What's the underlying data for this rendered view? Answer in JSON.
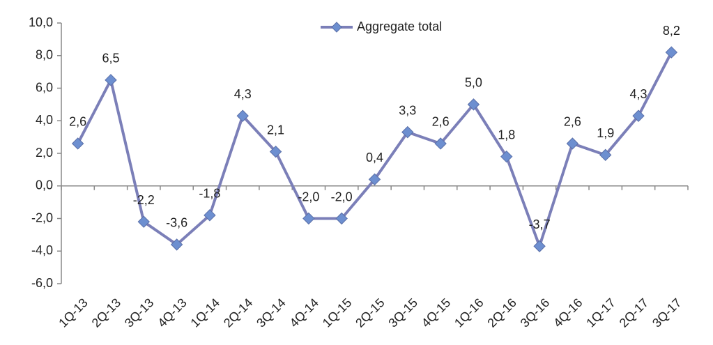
{
  "chart_data": {
    "type": "line",
    "categories": [
      "1Q-13",
      "2Q-13",
      "3Q-13",
      "4Q-13",
      "1Q-14",
      "2Q-14",
      "3Q-14",
      "4Q-14",
      "1Q-15",
      "2Q-15",
      "3Q-15",
      "4Q-15",
      "1Q-16",
      "2Q-16",
      "3Q-16",
      "4Q-16",
      "1Q-17",
      "2Q-17",
      "3Q-17"
    ],
    "series": [
      {
        "name": "Aggregate total",
        "color": "#7b7fb8",
        "marker_color": "#6d8fd0",
        "values": [
          2.6,
          6.5,
          -2.2,
          -3.6,
          -1.8,
          4.3,
          2.1,
          -2.0,
          -2.0,
          0.4,
          3.3,
          2.6,
          5.0,
          1.8,
          -3.7,
          2.6,
          1.9,
          4.3,
          8.2
        ],
        "value_labels": [
          "2,6",
          "6,5",
          "-2,2",
          "-3,6",
          "-1,8",
          "4,3",
          "2,1",
          "-2,0",
          "-2,0",
          "0,4",
          "3,3",
          "2,6",
          "5,0",
          "1,8",
          "-3,7",
          "2,6",
          "1,9",
          "4,3",
          "8,2"
        ]
      }
    ],
    "ylim": [
      -6,
      10
    ],
    "yticks": [
      {
        "value": -6,
        "label": "-6,0"
      },
      {
        "value": -4,
        "label": "-4,0"
      },
      {
        "value": -2,
        "label": "-2,0"
      },
      {
        "value": 0,
        "label": "0,0"
      },
      {
        "value": 2,
        "label": "2,0"
      },
      {
        "value": 4,
        "label": "4,0"
      },
      {
        "value": 6,
        "label": "6,0"
      },
      {
        "value": 8,
        "label": "8,0"
      },
      {
        "value": 10,
        "label": "10,0"
      }
    ],
    "legend": "top"
  }
}
